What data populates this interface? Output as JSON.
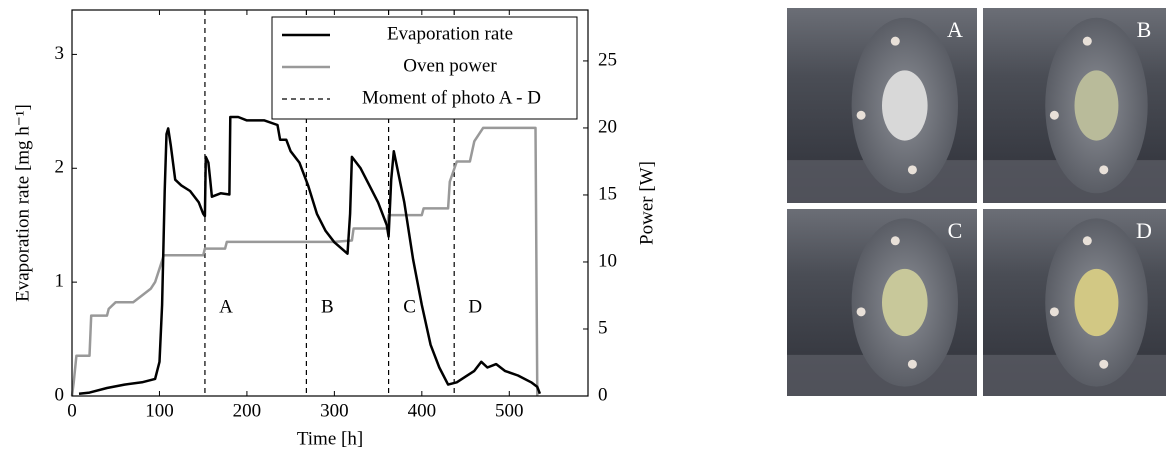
{
  "chart_data": {
    "type": "line",
    "xlabel": "Time [h]",
    "ylabel": "Evaporation rate [mg h⁻¹]",
    "y2label": "Power [W]",
    "xlim": [
      0,
      590
    ],
    "ylim": [
      0,
      3.39
    ],
    "y2lim": [
      0,
      28.8
    ],
    "xticks": [
      0,
      100,
      200,
      300,
      400,
      500
    ],
    "yticks": [
      0,
      1,
      2,
      3
    ],
    "y2ticks": [
      0,
      5,
      10,
      15,
      20,
      25
    ],
    "legend": "upper right",
    "series": [
      {
        "name": "Evaporation rate",
        "color": "#000000",
        "x": [
          8,
          20,
          40,
          60,
          80,
          95,
          100,
          103,
          106,
          108,
          110,
          113,
          118,
          125,
          135,
          145,
          150,
          152,
          153,
          156,
          158,
          160,
          170,
          180,
          181,
          190,
          200,
          220,
          235,
          238,
          245,
          250,
          260,
          270,
          280,
          290,
          300,
          315,
          318,
          320,
          330,
          340,
          350,
          360,
          362,
          365,
          368,
          372,
          380,
          390,
          400,
          410,
          420,
          430,
          440,
          450,
          460,
          468,
          475,
          485,
          495,
          510,
          525,
          532,
          535
        ],
        "values": [
          0.02,
          0.03,
          0.07,
          0.1,
          0.12,
          0.15,
          0.3,
          0.8,
          1.8,
          2.3,
          2.35,
          2.2,
          1.9,
          1.85,
          1.8,
          1.7,
          1.6,
          1.58,
          2.1,
          2.05,
          1.9,
          1.75,
          1.78,
          1.77,
          2.45,
          2.45,
          2.42,
          2.42,
          2.38,
          2.25,
          2.25,
          2.15,
          2.05,
          1.85,
          1.6,
          1.45,
          1.35,
          1.25,
          1.6,
          2.1,
          2.0,
          1.85,
          1.7,
          1.5,
          1.4,
          1.9,
          2.15,
          2.0,
          1.7,
          1.2,
          0.8,
          0.45,
          0.25,
          0.1,
          0.12,
          0.17,
          0.22,
          0.3,
          0.25,
          0.28,
          0.22,
          0.18,
          0.12,
          0.08,
          0.02
        ]
      },
      {
        "name": "Oven power",
        "color": "#999999",
        "axis": "y2",
        "x": [
          0,
          2,
          5,
          20,
          22,
          40,
          42,
          50,
          70,
          80,
          90,
          95,
          100,
          105,
          150,
          152,
          175,
          177,
          300,
          320,
          322,
          360,
          362,
          400,
          402,
          430,
          432,
          440,
          455,
          460,
          470,
          530,
          532
        ],
        "values": [
          0,
          1,
          3,
          3,
          6,
          6,
          6.5,
          7,
          7,
          7.5,
          8,
          8.5,
          9.5,
          10.5,
          10.5,
          11,
          11,
          11.5,
          11.5,
          11.6,
          12.5,
          12.5,
          13.5,
          13.5,
          14,
          14,
          16,
          17.5,
          17.5,
          19,
          20,
          20,
          0
        ]
      }
    ],
    "vline_legend": "Moment of photo A - D",
    "markers": [
      {
        "x": 152,
        "label": "A"
      },
      {
        "x": 268,
        "label": "B"
      },
      {
        "x": 362,
        "label": "C"
      },
      {
        "x": 437,
        "label": "D"
      }
    ]
  },
  "photos": {
    "labels": [
      "A",
      "B",
      "C",
      "D"
    ]
  }
}
